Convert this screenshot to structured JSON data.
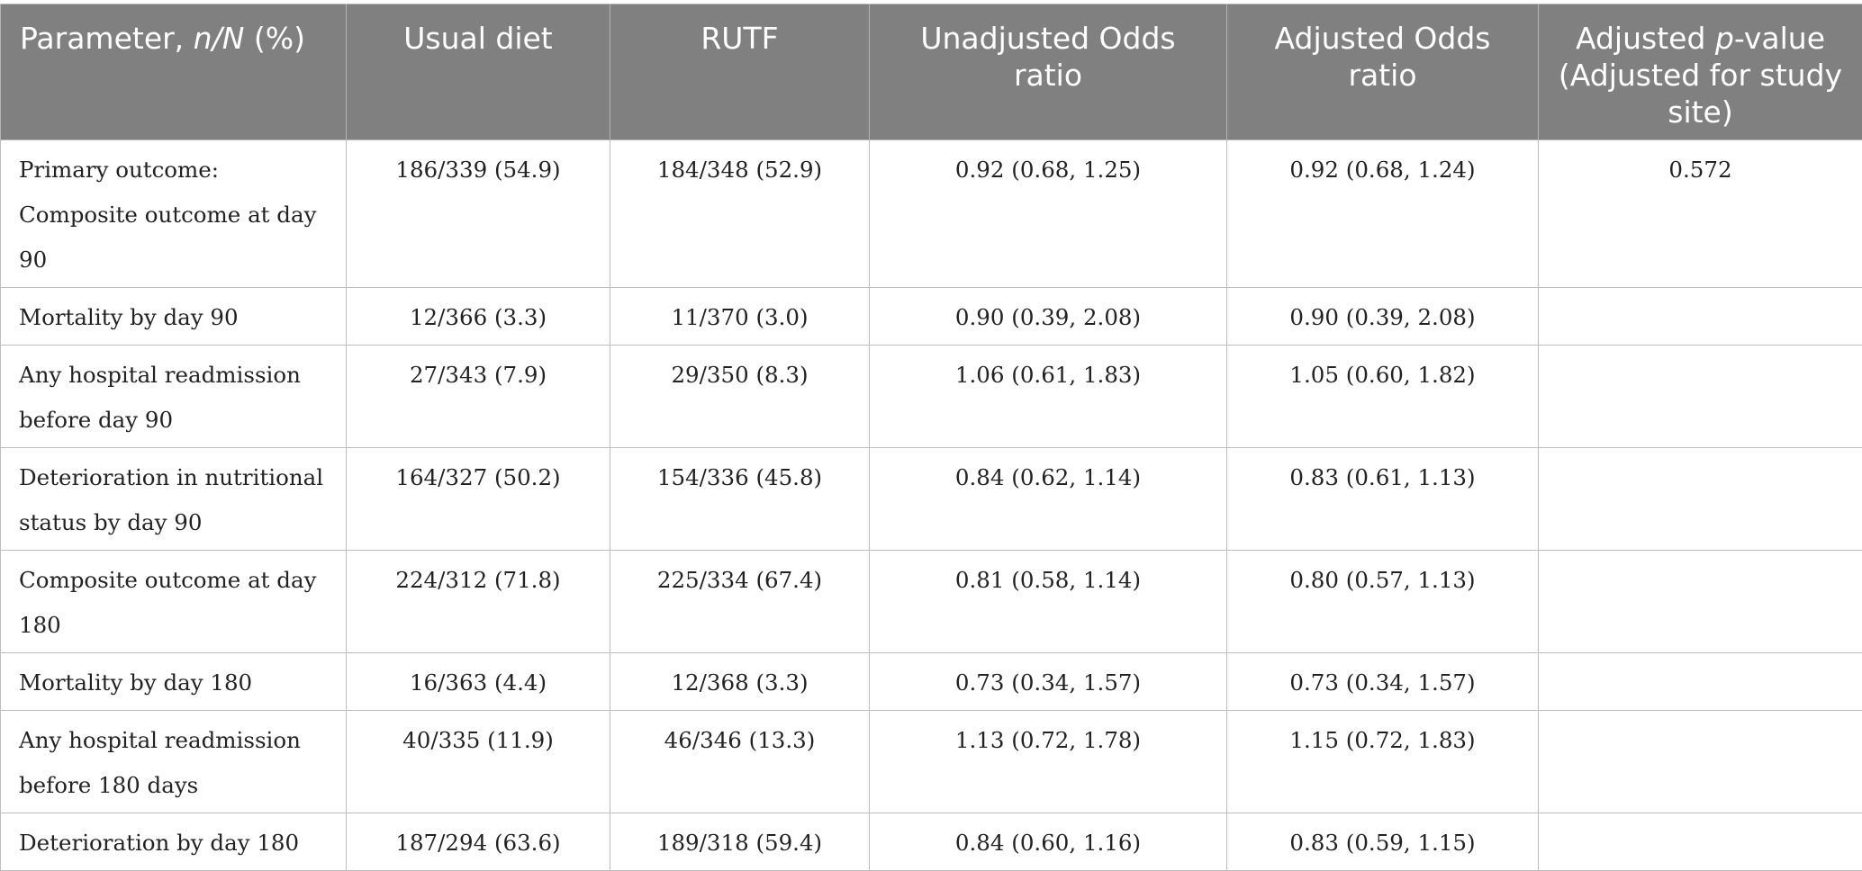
{
  "table": {
    "headers": {
      "parameter": "Parameter, ",
      "parameter_italic": "n/N",
      "parameter_suffix": " (%)",
      "usual_diet": "Usual diet",
      "rutf": "RUTF",
      "unadjusted_or": "Unadjusted Odds ratio",
      "adjusted_or": "Adjusted Odds ratio",
      "adjusted_p_prefix": "Adjusted ",
      "adjusted_p_italic": "p",
      "adjusted_p_suffix": "-value (Adjusted for study site)"
    },
    "rows": [
      {
        "parameter": "Primary outcome: Composite outcome at day 90",
        "usual_diet": "186/339 (54.9)",
        "rutf": "184/348 (52.9)",
        "unadjusted_or": "0.92 (0.68, 1.25)",
        "adjusted_or": "0.92 (0.68, 1.24)",
        "adjusted_p": "0.572"
      },
      {
        "parameter": "Mortality by day 90",
        "usual_diet": "12/366 (3.3)",
        "rutf": "11/370 (3.0)",
        "unadjusted_or": "0.90 (0.39, 2.08)",
        "adjusted_or": "0.90 (0.39, 2.08)",
        "adjusted_p": ""
      },
      {
        "parameter": "Any hospital readmission before day 90",
        "usual_diet": "27/343 (7.9)",
        "rutf": "29/350 (8.3)",
        "unadjusted_or": "1.06 (0.61, 1.83)",
        "adjusted_or": "1.05 (0.60, 1.82)",
        "adjusted_p": ""
      },
      {
        "parameter": "Deterioration in nutritional status by day 90",
        "usual_diet": "164/327 (50.2)",
        "rutf": "154/336 (45.8)",
        "unadjusted_or": "0.84 (0.62, 1.14)",
        "adjusted_or": "0.83 (0.61, 1.13)",
        "adjusted_p": ""
      },
      {
        "parameter": "Composite outcome at day 180",
        "usual_diet": "224/312 (71.8)",
        "rutf": "225/334 (67.4)",
        "unadjusted_or": "0.81 (0.58, 1.14)",
        "adjusted_or": "0.80 (0.57, 1.13)",
        "adjusted_p": ""
      },
      {
        "parameter": "Mortality by day 180",
        "usual_diet": "16/363 (4.4)",
        "rutf": "12/368 (3.3)",
        "unadjusted_or": "0.73 (0.34, 1.57)",
        "adjusted_or": "0.73 (0.34, 1.57)",
        "adjusted_p": ""
      },
      {
        "parameter": "Any hospital readmission before 180 days",
        "usual_diet": "40/335 (11.9)",
        "rutf": "46/346 (13.3)",
        "unadjusted_or": "1.13 (0.72, 1.78)",
        "adjusted_or": "1.15 (0.72, 1.83)",
        "adjusted_p": ""
      },
      {
        "parameter": "Deterioration by day 180",
        "usual_diet": "187/294 (63.6)",
        "rutf": "189/318 (59.4)",
        "unadjusted_or": "0.84 (0.60, 1.16)",
        "adjusted_or": "0.83 (0.59, 1.15)",
        "adjusted_p": ""
      }
    ]
  },
  "colors": {
    "header_background": "#808080",
    "header_text": "#ffffff",
    "grid_line": "#bdbdbd",
    "body_text": "#222222"
  }
}
